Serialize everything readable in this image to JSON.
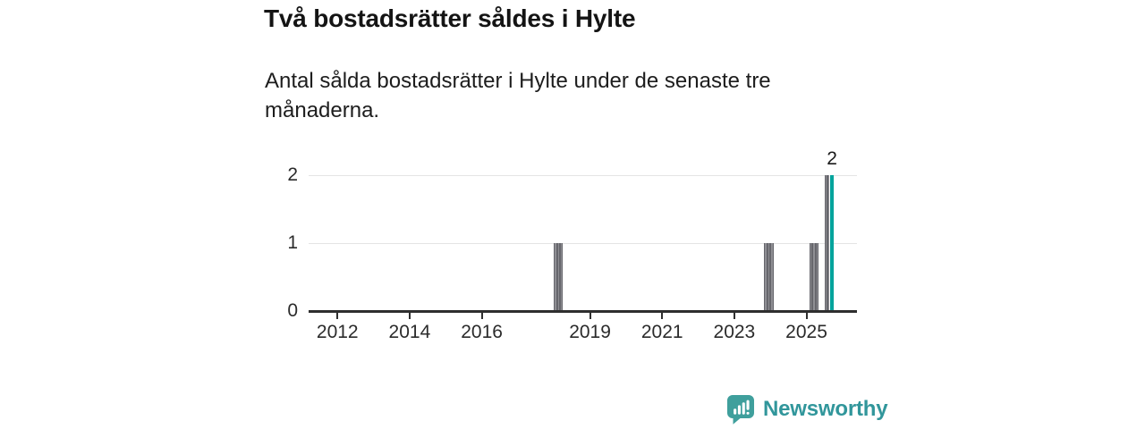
{
  "chart_data": {
    "type": "bar",
    "title": "Två bostadsrätter såldes i Hylte",
    "subtitle": "Antal sålda bostadsrätter i Hylte under de senaste tre månaderna.",
    "unit": "sålda bostadsrätter per månad (rullande tre månader)",
    "grid": "horizontal",
    "legend": null,
    "x_axis": {
      "min": 2011.2,
      "max": 2026.4,
      "ticks": [
        2012,
        2014,
        2016,
        2019,
        2021,
        2023,
        2025
      ]
    },
    "y_axis": {
      "min": 0,
      "max": 2,
      "ticks": [
        0,
        1,
        2
      ]
    },
    "bars": [
      {
        "month": "2018-01",
        "value": 1
      },
      {
        "month": "2018-02",
        "value": 1
      },
      {
        "month": "2018-03",
        "value": 1
      },
      {
        "month": "2023-11",
        "value": 1
      },
      {
        "month": "2023-12",
        "value": 1
      },
      {
        "month": "2024-01",
        "value": 1
      },
      {
        "month": "2025-02",
        "value": 1
      },
      {
        "month": "2025-03",
        "value": 1
      },
      {
        "month": "2025-04",
        "value": 1
      },
      {
        "month": "2025-07",
        "value": 2
      },
      {
        "month": "2025-08",
        "value": 2
      },
      {
        "month": "2025-09",
        "value": 2,
        "highlight": true
      }
    ],
    "annotation": {
      "text": "2",
      "month": "2025-09"
    },
    "colors": {
      "bar": "#8e8e93",
      "bar_edge": "#66666c",
      "highlight": "#00a39c",
      "gridline": "#e4e4e4",
      "axis": "#2e2e2e",
      "label": "#2b2b2b"
    }
  },
  "footer": {
    "brand": "Newsworthy",
    "brand_color": "#31969b",
    "logo_color": "#3f9f9c",
    "logo_icon": "bar-chart-speech-bubble"
  }
}
